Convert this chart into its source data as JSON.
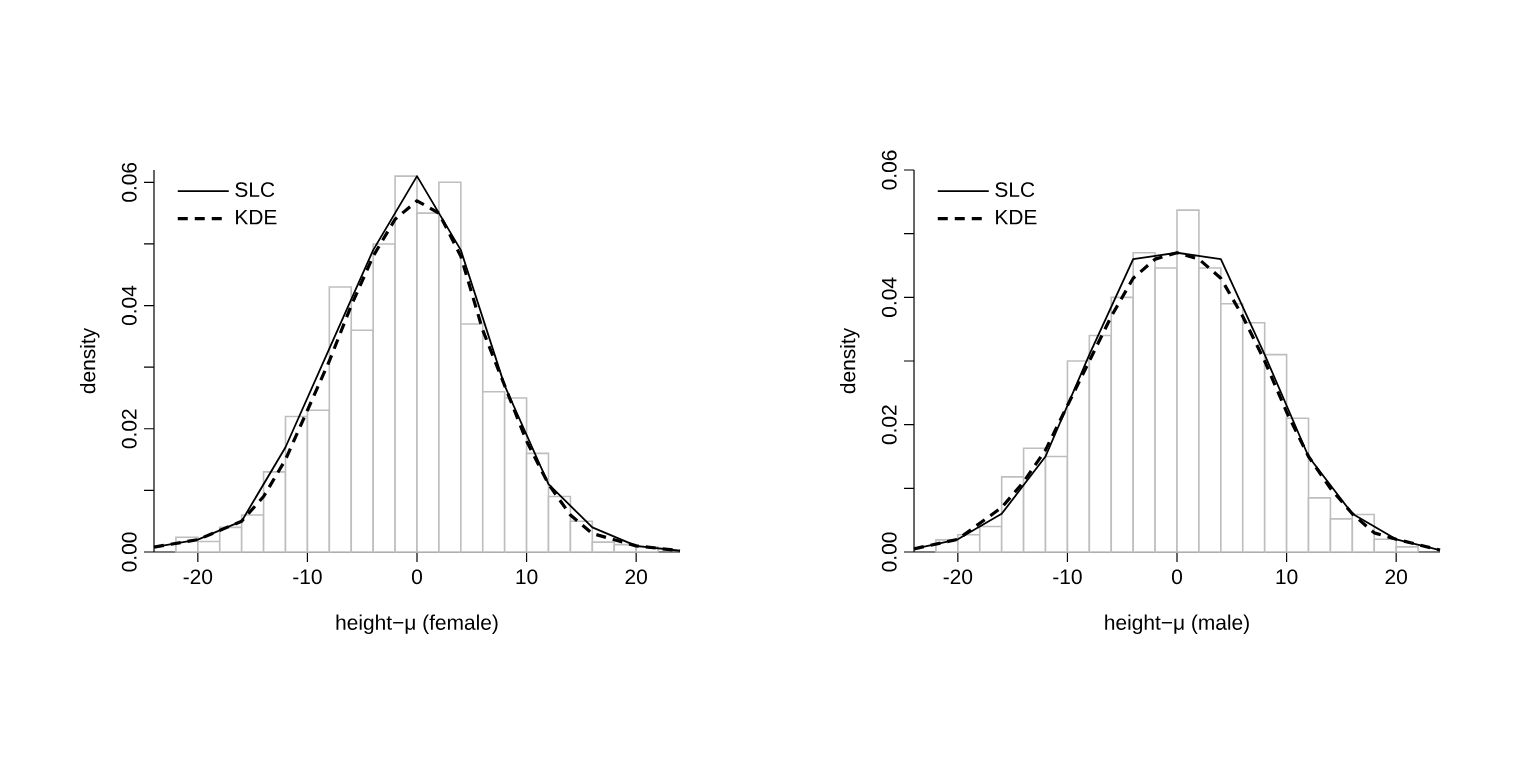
{
  "chart_data": [
    {
      "type": "histogram",
      "xlabel": "height−μ (female)",
      "ylabel": "density",
      "color": "#bebebe",
      "legend": "top left",
      "xlim": [
        -24,
        24
      ],
      "ylim": [
        0,
        0.062
      ],
      "xticks": [
        -20,
        -10,
        0,
        10,
        20
      ],
      "yticks": [
        {
          "value": 0,
          "label": "0.00"
        },
        {
          "value": 0.01,
          "label": null
        },
        {
          "value": 0.02,
          "label": "0.02"
        },
        {
          "value": 0.03,
          "label": null
        },
        {
          "value": 0.04,
          "label": "0.04"
        },
        {
          "value": 0.05,
          "label": null
        },
        {
          "value": 0.06,
          "label": "0.06"
        }
      ],
      "bins": [
        -22,
        -20,
        -18,
        -16,
        -14,
        -12,
        -10,
        -8,
        -6,
        -4,
        -2,
        0,
        2,
        4,
        6,
        8,
        10,
        12,
        14,
        16,
        18,
        20,
        22
      ],
      "values": [
        0.0024,
        0.0017,
        0.004,
        0.006,
        0.013,
        0.022,
        0.023,
        0.043,
        0.036,
        0.05,
        0.061,
        0.055,
        0.06,
        0.037,
        0.026,
        0.025,
        0.016,
        0.009,
        0.005,
        0.0016,
        0.0012,
        0.0008
      ],
      "series": [
        {
          "name": "SLC",
          "type": "line",
          "line_style": "solid",
          "color": "#000000",
          "x": [
            -24,
            -20,
            -16,
            -12,
            -8,
            -4,
            0,
            4,
            8,
            12,
            16,
            20,
            24
          ],
          "values": [
            0.0008,
            0.002,
            0.005,
            0.017,
            0.033,
            0.049,
            0.061,
            0.049,
            0.027,
            0.011,
            0.004,
            0.001,
            0.0002
          ]
        },
        {
          "name": "KDE",
          "type": "line",
          "line_style": "dashed",
          "color": "#000000",
          "x": [
            -24,
            -20,
            -16,
            -14,
            -12,
            -10,
            -8,
            -6,
            -4,
            -2,
            0,
            2,
            4,
            6,
            8,
            10,
            12,
            14,
            16,
            18,
            20,
            24
          ],
          "values": [
            0.0008,
            0.002,
            0.005,
            0.009,
            0.015,
            0.023,
            0.031,
            0.04,
            0.048,
            0.054,
            0.057,
            0.055,
            0.048,
            0.036,
            0.027,
            0.018,
            0.011,
            0.006,
            0.003,
            0.002,
            0.001,
            0.0002
          ]
        }
      ]
    },
    {
      "type": "histogram",
      "xlabel": "height−μ (male)",
      "ylabel": "density",
      "color": "#bebebe",
      "legend": "top left",
      "xlim": [
        -24,
        24
      ],
      "ylim": [
        0,
        0.06
      ],
      "xticks": [
        -20,
        -10,
        0,
        10,
        20
      ],
      "yticks": [
        {
          "value": 0,
          "label": "0.00"
        },
        {
          "value": 0.01,
          "label": null
        },
        {
          "value": 0.02,
          "label": "0.02"
        },
        {
          "value": 0.03,
          "label": null
        },
        {
          "value": 0.04,
          "label": "0.04"
        },
        {
          "value": 0.05,
          "label": null
        },
        {
          "value": 0.06,
          "label": "0.06"
        }
      ],
      "bins": [
        -22,
        -20,
        -18,
        -16,
        -14,
        -12,
        -10,
        -8,
        -6,
        -4,
        -2,
        0,
        2,
        4,
        6,
        8,
        10,
        12,
        14,
        16,
        18,
        20,
        22
      ],
      "values": [
        0.0019,
        0.0027,
        0.004,
        0.0118,
        0.0163,
        0.015,
        0.03,
        0.034,
        0.04,
        0.047,
        0.0446,
        0.0537,
        0.0446,
        0.039,
        0.036,
        0.031,
        0.021,
        0.0085,
        0.0052,
        0.0059,
        0.002,
        0.0008
      ],
      "series": [
        {
          "name": "SLC",
          "type": "line",
          "line_style": "solid",
          "color": "#000000",
          "x": [
            -24,
            -20,
            -16,
            -12,
            -8,
            -4,
            0,
            4,
            8,
            12,
            16,
            20,
            24
          ],
          "values": [
            0.0005,
            0.002,
            0.006,
            0.015,
            0.031,
            0.046,
            0.047,
            0.046,
            0.031,
            0.015,
            0.006,
            0.002,
            0.0003
          ]
        },
        {
          "name": "KDE",
          "type": "line",
          "line_style": "dashed",
          "color": "#000000",
          "x": [
            -24,
            -20,
            -16,
            -14,
            -12,
            -10,
            -8,
            -6,
            -4,
            -2,
            0,
            2,
            4,
            6,
            8,
            10,
            12,
            14,
            16,
            18,
            20,
            24
          ],
          "values": [
            0.0005,
            0.002,
            0.007,
            0.011,
            0.016,
            0.023,
            0.03,
            0.037,
            0.043,
            0.046,
            0.047,
            0.046,
            0.043,
            0.037,
            0.03,
            0.022,
            0.015,
            0.01,
            0.006,
            0.003,
            0.002,
            0.0003
          ]
        }
      ]
    }
  ]
}
